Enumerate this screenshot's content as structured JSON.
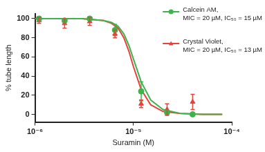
{
  "chart_data": {
    "type": "scatter",
    "x_label": "Suramin (M)",
    "y_label": "% tube length",
    "log": "x",
    "grid": false,
    "legend": "top-right",
    "xlim": [
      1e-06,
      0.0001
    ],
    "xticks": [
      {
        "value": 1e-06,
        "label": "10⁻⁶"
      },
      {
        "value": 1e-05,
        "label": "10⁻⁵"
      },
      {
        "value": 0.0001,
        "label": "10⁻⁴"
      }
    ],
    "ylim": [
      -8,
      105
    ],
    "yticks": [
      0,
      20,
      40,
      60,
      80,
      100
    ],
    "x": [
      1.1e-06,
      2e-06,
      3.6e-06,
      6.5e-06,
      1.2e-05,
      2.2e-05,
      4e-05
    ],
    "fit_x": [
      1e-06,
      3e-06,
      5e-06,
      6e-06,
      7e-06,
      8e-06,
      9e-06,
      1e-05,
      1.2e-05,
      1.5e-05,
      2e-05,
      3e-05,
      5e-05,
      8e-05
    ],
    "series": [
      {
        "name": "Calcein AM, MIC = 20 µM, IC₅₀ = 15 µM",
        "color": "#3cb44b",
        "marker": "circle",
        "line_style": "solid",
        "values": [
          100,
          98,
          100,
          88,
          24,
          2,
          0
        ],
        "errors": [
          2,
          2,
          1,
          6,
          10,
          2,
          1
        ],
        "fit": [
          100,
          100,
          98,
          96,
          92,
          84,
          72,
          58,
          34,
          15,
          5,
          1,
          0,
          0
        ]
      },
      {
        "name": "Crystal Violet, MIC = 20 µM, IC₅₀ = 13 µM",
        "color": "#e8413c",
        "marker": "triangle",
        "line_style": "solid",
        "values": [
          98,
          95,
          97,
          84,
          11,
          5,
          13
        ],
        "errors": [
          3,
          5,
          4,
          4,
          4,
          6,
          8
        ],
        "fit": [
          100,
          100,
          98,
          95,
          90,
          80,
          66,
          50,
          26,
          10,
          3,
          1,
          0,
          0
        ]
      }
    ]
  }
}
